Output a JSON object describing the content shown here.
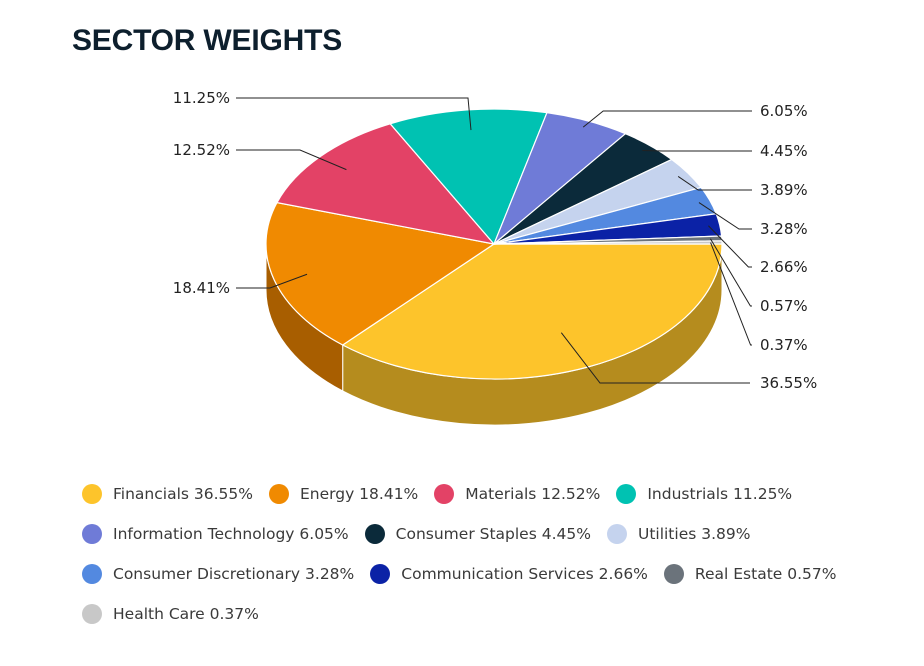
{
  "title": "SECTOR WEIGHTS",
  "chart_data": {
    "type": "pie",
    "title": "SECTOR WEIGHTS",
    "three_d": true,
    "legend_position": "bottom",
    "slices": [
      {
        "name": "Financials",
        "value": 36.55,
        "label": "36.55%",
        "legend": "Financials 36.55%",
        "color": "#fdc42b",
        "side_color": "#b58c1e"
      },
      {
        "name": "Energy",
        "value": 18.41,
        "label": "18.41%",
        "legend": "Energy 18.41%",
        "color": "#f08a01",
        "side_color": "#a85e00"
      },
      {
        "name": "Materials",
        "value": 12.52,
        "label": "12.52%",
        "legend": "Materials 12.52%",
        "color": "#e34266",
        "side_color": "#9e2e47"
      },
      {
        "name": "Industrials",
        "value": 11.25,
        "label": "11.25%",
        "legend": "Industrials 11.25%",
        "color": "#00c2b2",
        "side_color": "#00877c"
      },
      {
        "name": "Information Technology",
        "value": 6.05,
        "label": "6.05%",
        "legend": "Information Technology 6.05%",
        "color": "#6f7bd7",
        "side_color": "#4d5696"
      },
      {
        "name": "Consumer Staples",
        "value": 4.45,
        "label": "4.45%",
        "legend": "Consumer Staples 4.45%",
        "color": "#0b2a3a",
        "side_color": "#061a25"
      },
      {
        "name": "Utilities",
        "value": 3.89,
        "label": "3.89%",
        "legend": "Utilities 3.89%",
        "color": "#c5d3ee",
        "side_color": "#8a94a7"
      },
      {
        "name": "Consumer Discretionary",
        "value": 3.28,
        "label": "3.28%",
        "legend": "Consumer Discretionary 3.28%",
        "color": "#5389e0",
        "side_color": "#3a609d"
      },
      {
        "name": "Communication Services",
        "value": 2.66,
        "label": "2.66%",
        "legend": "Communication Services 2.66%",
        "color": "#0b22a6",
        "side_color": "#081874"
      },
      {
        "name": "Real Estate",
        "value": 0.57,
        "label": "0.57%",
        "legend": "Real Estate 0.57%",
        "color": "#6b737b",
        "side_color": "#4b5156"
      },
      {
        "name": "Health Care",
        "value": 0.37,
        "label": "0.37%",
        "legend": "Health Care 0.37%",
        "color": "#c8c8c8",
        "side_color": "#8c8c8c"
      }
    ]
  }
}
